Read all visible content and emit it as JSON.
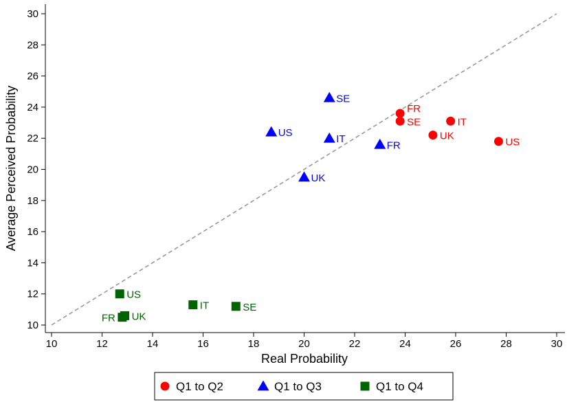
{
  "chart_data": {
    "type": "scatter",
    "xlabel": "Real Probability",
    "ylabel": "Average Perceived Probability",
    "xlim": [
      10,
      30
    ],
    "ylim": [
      10,
      30
    ],
    "xticks": [
      "10",
      "12",
      "14",
      "16",
      "18",
      "20",
      "22",
      "24",
      "26",
      "28",
      "30"
    ],
    "yticks": [
      "10",
      "12",
      "14",
      "16",
      "18",
      "20",
      "22",
      "24",
      "26",
      "28",
      "30"
    ],
    "reference_line": {
      "style": "dashed",
      "from": [
        10,
        10
      ],
      "to": [
        30,
        30
      ],
      "color": "#999999"
    },
    "legend_position": "bottom",
    "series": [
      {
        "name": "Q1 to Q2",
        "marker": "circle",
        "color": "#ff0000",
        "points": [
          {
            "label": "FR",
            "x": 23.8,
            "y": 23.6
          },
          {
            "label": "SE",
            "x": 23.8,
            "y": 23.1
          },
          {
            "label": "IT",
            "x": 25.8,
            "y": 23.1
          },
          {
            "label": "UK",
            "x": 25.1,
            "y": 22.2
          },
          {
            "label": "US",
            "x": 27.7,
            "y": 21.8
          }
        ]
      },
      {
        "name": "Q1 to Q3",
        "marker": "triangle",
        "color": "#0000ff",
        "points": [
          {
            "label": "SE",
            "x": 21.0,
            "y": 24.6
          },
          {
            "label": "US",
            "x": 18.7,
            "y": 22.4
          },
          {
            "label": "IT",
            "x": 21.0,
            "y": 22.0
          },
          {
            "label": "FR",
            "x": 23.0,
            "y": 21.6
          },
          {
            "label": "UK",
            "x": 20.0,
            "y": 19.5
          }
        ]
      },
      {
        "name": "Q1 to Q4",
        "marker": "square",
        "color": "#006400",
        "points": [
          {
            "label": "US",
            "x": 12.7,
            "y": 12.0
          },
          {
            "label": "UK",
            "x": 12.9,
            "y": 10.6
          },
          {
            "label": "FR",
            "x": 12.8,
            "y": 10.5
          },
          {
            "label": "IT",
            "x": 15.6,
            "y": 11.3
          },
          {
            "label": "SE",
            "x": 17.3,
            "y": 11.2
          }
        ]
      }
    ]
  }
}
